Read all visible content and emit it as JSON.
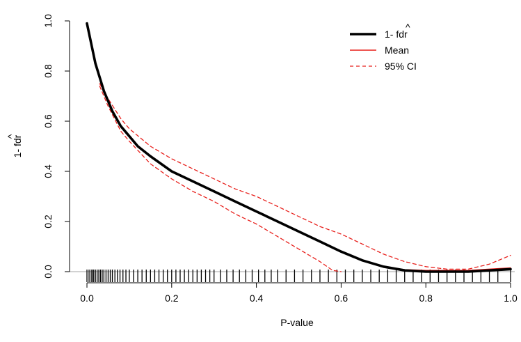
{
  "chart_data": {
    "type": "line",
    "title": "",
    "xlabel": "P-value",
    "ylabel": "1- fdr",
    "ylabel_hat": "^",
    "xlim": [
      0.0,
      1.0
    ],
    "ylim": [
      0.0,
      1.0
    ],
    "x_ticks": [
      0.0,
      0.2,
      0.4,
      0.6,
      0.8,
      1.0
    ],
    "x_tick_labels": [
      "0.0",
      "0.2",
      "0.4",
      "0.6",
      "0.8",
      "1.0"
    ],
    "y_ticks": [
      0.0,
      0.2,
      0.4,
      0.6,
      0.8,
      1.0
    ],
    "y_tick_labels": [
      "0.0",
      "0.2",
      "0.4",
      "0.6",
      "0.8",
      "1.0"
    ],
    "grid": false,
    "legend_position": "top-right",
    "legend": {
      "fdr_prefix": "1- ",
      "fdr_word": "fdr",
      "mean": "Mean",
      "ci": "95% CI"
    },
    "reference_line_y": 0.0,
    "series": [
      {
        "name": "1- fdr",
        "color": "#000000",
        "style": "solid-thick",
        "x": [
          0.0,
          0.02,
          0.04,
          0.06,
          0.08,
          0.1,
          0.12,
          0.15,
          0.2,
          0.25,
          0.3,
          0.35,
          0.4,
          0.45,
          0.5,
          0.55,
          0.6,
          0.65,
          0.7,
          0.75,
          0.8,
          0.85,
          0.9,
          0.95,
          1.0
        ],
        "y": [
          0.99,
          0.83,
          0.72,
          0.64,
          0.58,
          0.54,
          0.5,
          0.46,
          0.4,
          0.36,
          0.32,
          0.28,
          0.24,
          0.2,
          0.16,
          0.12,
          0.08,
          0.045,
          0.02,
          0.005,
          0.0,
          0.0,
          0.0,
          0.005,
          0.01
        ]
      },
      {
        "name": "Mean",
        "color": "#e8201c",
        "style": "solid",
        "x": [
          0.0,
          0.02,
          0.04,
          0.06,
          0.08,
          0.1,
          0.12,
          0.15,
          0.2,
          0.25,
          0.3,
          0.35,
          0.4,
          0.45,
          0.5,
          0.55,
          0.6,
          0.65,
          0.7,
          0.75,
          0.8,
          0.85,
          0.9,
          0.95,
          1.0
        ],
        "y": [
          0.99,
          0.83,
          0.72,
          0.64,
          0.58,
          0.54,
          0.5,
          0.46,
          0.4,
          0.36,
          0.32,
          0.28,
          0.24,
          0.2,
          0.16,
          0.12,
          0.08,
          0.045,
          0.02,
          0.008,
          0.005,
          0.005,
          0.005,
          0.01,
          0.015
        ]
      },
      {
        "name": "95% CI upper",
        "color": "#e8201c",
        "style": "dashed",
        "x": [
          0.03,
          0.05,
          0.08,
          0.1,
          0.15,
          0.2,
          0.25,
          0.3,
          0.35,
          0.4,
          0.45,
          0.5,
          0.55,
          0.6,
          0.65,
          0.7,
          0.75,
          0.8,
          0.85,
          0.9,
          0.95,
          1.0
        ],
        "y": [
          0.75,
          0.69,
          0.61,
          0.57,
          0.5,
          0.45,
          0.41,
          0.37,
          0.33,
          0.3,
          0.26,
          0.22,
          0.18,
          0.15,
          0.11,
          0.07,
          0.04,
          0.02,
          0.01,
          0.01,
          0.03,
          0.065
        ]
      },
      {
        "name": "95% CI lower",
        "color": "#e8201c",
        "style": "dashed",
        "x": [
          0.03,
          0.05,
          0.08,
          0.1,
          0.15,
          0.2,
          0.25,
          0.3,
          0.35,
          0.4,
          0.45,
          0.5,
          0.55,
          0.58,
          0.6
        ],
        "y": [
          0.74,
          0.66,
          0.56,
          0.52,
          0.43,
          0.37,
          0.32,
          0.28,
          0.23,
          0.19,
          0.14,
          0.09,
          0.04,
          0.005,
          0.0
        ]
      }
    ],
    "rug": [
      0.0,
      0.005,
      0.01,
      0.013,
      0.016,
      0.02,
      0.024,
      0.028,
      0.032,
      0.036,
      0.04,
      0.045,
      0.05,
      0.055,
      0.06,
      0.066,
      0.072,
      0.078,
      0.085,
      0.092,
      0.1,
      0.11,
      0.12,
      0.13,
      0.14,
      0.15,
      0.16,
      0.17,
      0.18,
      0.19,
      0.2,
      0.21,
      0.22,
      0.23,
      0.24,
      0.25,
      0.26,
      0.27,
      0.28,
      0.29,
      0.3,
      0.315,
      0.33,
      0.345,
      0.36,
      0.375,
      0.39,
      0.405,
      0.42,
      0.435,
      0.45,
      0.47,
      0.49,
      0.51,
      0.53,
      0.55,
      0.57,
      0.59,
      0.61,
      0.63,
      0.65,
      0.67,
      0.69,
      0.71,
      0.73,
      0.75,
      0.77,
      0.79,
      0.81,
      0.83,
      0.85,
      0.87,
      0.89,
      0.91,
      0.93,
      0.95,
      0.97,
      1.0
    ],
    "colors": {
      "axis": "#000000",
      "reference": "#b8b8b8",
      "mean": "#e8201c",
      "fdr": "#000000"
    }
  }
}
